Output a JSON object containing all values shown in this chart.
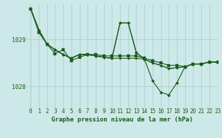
{
  "title": "Graphe pression niveau de la mer (hPa)",
  "bg_color": "#cce8e8",
  "grid_color": "#aacfcf",
  "line_color": "#1a5c1a",
  "xlim": [
    -0.5,
    23
  ],
  "ylim": [
    1027.55,
    1029.75
  ],
  "yticks": [
    1028,
    1029
  ],
  "xticks": [
    0,
    1,
    2,
    3,
    4,
    5,
    6,
    7,
    8,
    9,
    10,
    11,
    12,
    13,
    14,
    15,
    16,
    17,
    18,
    19,
    20,
    21,
    22,
    23
  ],
  "series": [
    [
      1029.65,
      1029.2,
      1028.9,
      1028.78,
      1028.68,
      1028.6,
      1028.68,
      1028.68,
      1028.65,
      1028.62,
      1028.6,
      1029.35,
      1029.35,
      1028.72,
      1028.58,
      1028.5,
      1028.45,
      1028.38,
      1028.4,
      1028.42,
      1028.48,
      1028.48,
      1028.52,
      1028.52
    ],
    [
      1029.65,
      1029.2,
      1028.9,
      1028.78,
      1028.68,
      1028.6,
      1028.68,
      1028.68,
      1028.65,
      1028.62,
      1028.6,
      1029.35,
      1029.35,
      1028.72,
      1028.58,
      1028.12,
      1027.88,
      1027.82,
      1028.08,
      1028.42,
      1028.48,
      1028.48,
      1028.52,
      1028.52
    ],
    [
      1029.65,
      1029.15,
      1028.9,
      1028.7,
      1028.78,
      1028.55,
      1028.62,
      1028.68,
      1028.68,
      1028.65,
      1028.65,
      1028.65,
      1028.65,
      1028.65,
      1028.6,
      1028.55,
      1028.5,
      1028.45,
      1028.45,
      1028.42,
      1028.48,
      1028.48,
      1028.52,
      1028.52
    ],
    [
      1029.65,
      1029.2,
      1028.9,
      1028.78,
      1028.68,
      1028.6,
      1028.68,
      1028.68,
      1028.65,
      1028.62,
      1028.6,
      1028.6,
      1028.6,
      1028.6,
      1028.58,
      1028.5,
      1028.45,
      1028.38,
      1028.4,
      1028.42,
      1028.48,
      1028.48,
      1028.52,
      1028.52
    ]
  ],
  "markersize": 2.2,
  "linewidth": 0.85,
  "title_fontsize": 6.5,
  "tick_fontsize": 5.5,
  "xlabel_fontsize": 6.5
}
